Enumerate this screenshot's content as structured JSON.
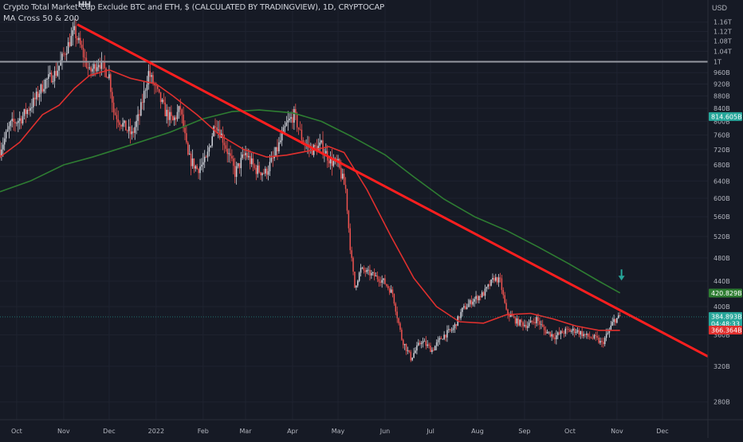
{
  "header": {
    "title": "Crypto Total Market Cap Exclude BTC and ETH, $ (CALCULATED BY TRADINGVIEW), 1D, CRYPTOCAP",
    "indicator": "MA Cross 50 & 200",
    "currency": "USD",
    "annotation": "HH"
  },
  "colors": {
    "background": "#161a25",
    "up_candle": "#d1d4dc",
    "down_candle": "#ef5350",
    "ma50": "#e0302e",
    "ma200": "#2e7d32",
    "trendline": "#ff1f1f",
    "resistance": "#9598a1",
    "arrow": "#26a69a"
  },
  "chart_data": {
    "type": "candlestick",
    "title": "Crypto Total Market Cap Exclude BTC and ETH, $ (CALCULATED BY TRADINGVIEW), 1D, CRYPTOCAP",
    "y_scale": "log",
    "ylim": [
      262,
      1260
    ],
    "xlim": [
      "2021-09-20",
      "2022-12-31"
    ],
    "y_ticks": [
      "1.16T",
      "1.12T",
      "1.08T",
      "1.04T",
      "1T",
      "960B",
      "920B",
      "880B",
      "840B",
      "800B",
      "760B",
      "720B",
      "680B",
      "640B",
      "600B",
      "560B",
      "520B",
      "480B",
      "440B",
      "400B",
      "360B",
      "320B",
      "280B"
    ],
    "x_ticks": [
      {
        "label": "Oct",
        "date": "2021-10-01"
      },
      {
        "label": "Nov",
        "date": "2021-11-01"
      },
      {
        "label": "Dec",
        "date": "2021-12-01"
      },
      {
        "label": "2022",
        "date": "2022-01-01"
      },
      {
        "label": "Feb",
        "date": "2022-02-01"
      },
      {
        "label": "Mar",
        "date": "2022-03-01"
      },
      {
        "label": "Apr",
        "date": "2022-04-01"
      },
      {
        "label": "May",
        "date": "2022-05-01"
      },
      {
        "label": "Jun",
        "date": "2022-06-01"
      },
      {
        "label": "Jul",
        "date": "2022-07-01"
      },
      {
        "label": "Aug",
        "date": "2022-08-01"
      },
      {
        "label": "Sep",
        "date": "2022-09-01"
      },
      {
        "label": "Oct",
        "date": "2022-10-01"
      },
      {
        "label": "Nov",
        "date": "2022-11-01"
      },
      {
        "label": "Dec",
        "date": "2022-12-01"
      }
    ],
    "price_path": [
      {
        "date": "2021-09-20",
        "value": 720
      },
      {
        "date": "2021-09-27",
        "value": 790
      },
      {
        "date": "2021-10-04",
        "value": 810
      },
      {
        "date": "2021-10-12",
        "value": 860
      },
      {
        "date": "2021-10-20",
        "value": 930
      },
      {
        "date": "2021-10-27",
        "value": 960
      },
      {
        "date": "2021-11-02",
        "value": 1040
      },
      {
        "date": "2021-11-08",
        "value": 1120
      },
      {
        "date": "2021-11-12",
        "value": 1060
      },
      {
        "date": "2021-11-18",
        "value": 960
      },
      {
        "date": "2021-11-24",
        "value": 1000
      },
      {
        "date": "2021-12-01",
        "value": 950
      },
      {
        "date": "2021-12-04",
        "value": 830
      },
      {
        "date": "2021-12-10",
        "value": 790
      },
      {
        "date": "2021-12-16",
        "value": 760
      },
      {
        "date": "2021-12-21",
        "value": 820
      },
      {
        "date": "2021-12-27",
        "value": 960
      },
      {
        "date": "2022-01-01",
        "value": 900
      },
      {
        "date": "2022-01-07",
        "value": 830
      },
      {
        "date": "2022-01-12",
        "value": 800
      },
      {
        "date": "2022-01-17",
        "value": 840
      },
      {
        "date": "2022-01-22",
        "value": 700
      },
      {
        "date": "2022-01-28",
        "value": 670
      },
      {
        "date": "2022-02-03",
        "value": 690
      },
      {
        "date": "2022-02-09",
        "value": 800
      },
      {
        "date": "2022-02-15",
        "value": 740
      },
      {
        "date": "2022-02-22",
        "value": 660
      },
      {
        "date": "2022-03-01",
        "value": 710
      },
      {
        "date": "2022-03-07",
        "value": 670
      },
      {
        "date": "2022-03-14",
        "value": 660
      },
      {
        "date": "2022-03-20",
        "value": 700
      },
      {
        "date": "2022-03-28",
        "value": 790
      },
      {
        "date": "2022-04-02",
        "value": 820
      },
      {
        "date": "2022-04-08",
        "value": 740
      },
      {
        "date": "2022-04-14",
        "value": 720
      },
      {
        "date": "2022-04-20",
        "value": 730
      },
      {
        "date": "2022-04-26",
        "value": 690
      },
      {
        "date": "2022-05-01",
        "value": 680
      },
      {
        "date": "2022-05-06",
        "value": 620
      },
      {
        "date": "2022-05-09",
        "value": 500
      },
      {
        "date": "2022-05-12",
        "value": 430
      },
      {
        "date": "2022-05-16",
        "value": 460
      },
      {
        "date": "2022-05-24",
        "value": 450
      },
      {
        "date": "2022-05-31",
        "value": 440
      },
      {
        "date": "2022-06-06",
        "value": 420
      },
      {
        "date": "2022-06-12",
        "value": 355
      },
      {
        "date": "2022-06-18",
        "value": 330
      },
      {
        "date": "2022-06-25",
        "value": 352
      },
      {
        "date": "2022-07-02",
        "value": 340
      },
      {
        "date": "2022-07-09",
        "value": 358
      },
      {
        "date": "2022-07-16",
        "value": 368
      },
      {
        "date": "2022-07-22",
        "value": 395
      },
      {
        "date": "2022-07-29",
        "value": 410
      },
      {
        "date": "2022-08-05",
        "value": 420
      },
      {
        "date": "2022-08-12",
        "value": 445
      },
      {
        "date": "2022-08-16",
        "value": 440
      },
      {
        "date": "2022-08-20",
        "value": 392
      },
      {
        "date": "2022-08-27",
        "value": 378
      },
      {
        "date": "2022-09-03",
        "value": 373
      },
      {
        "date": "2022-09-09",
        "value": 382
      },
      {
        "date": "2022-09-14",
        "value": 366
      },
      {
        "date": "2022-09-21",
        "value": 358
      },
      {
        "date": "2022-09-28",
        "value": 365
      },
      {
        "date": "2022-10-05",
        "value": 366
      },
      {
        "date": "2022-10-12",
        "value": 358
      },
      {
        "date": "2022-10-18",
        "value": 355
      },
      {
        "date": "2022-10-22",
        "value": 348
      },
      {
        "date": "2022-10-26",
        "value": 362
      },
      {
        "date": "2022-10-30",
        "value": 380
      },
      {
        "date": "2022-11-03",
        "value": 385
      }
    ],
    "ma50": [
      {
        "date": "2021-09-20",
        "value": 700
      },
      {
        "date": "2021-10-03",
        "value": 740
      },
      {
        "date": "2021-10-18",
        "value": 820
      },
      {
        "date": "2021-10-29",
        "value": 850
      },
      {
        "date": "2021-11-08",
        "value": 905
      },
      {
        "date": "2021-11-18",
        "value": 950
      },
      {
        "date": "2021-12-01",
        "value": 970
      },
      {
        "date": "2021-12-15",
        "value": 940
      },
      {
        "date": "2022-01-01",
        "value": 920
      },
      {
        "date": "2022-01-12",
        "value": 880
      },
      {
        "date": "2022-01-28",
        "value": 820
      },
      {
        "date": "2022-02-12",
        "value": 760
      },
      {
        "date": "2022-02-28",
        "value": 720
      },
      {
        "date": "2022-03-15",
        "value": 700
      },
      {
        "date": "2022-03-28",
        "value": 705
      },
      {
        "date": "2022-04-10",
        "value": 715
      },
      {
        "date": "2022-04-25",
        "value": 728
      },
      {
        "date": "2022-05-05",
        "value": 712
      },
      {
        "date": "2022-05-20",
        "value": 620
      },
      {
        "date": "2022-06-05",
        "value": 520
      },
      {
        "date": "2022-06-20",
        "value": 445
      },
      {
        "date": "2022-07-05",
        "value": 400
      },
      {
        "date": "2022-07-20",
        "value": 378
      },
      {
        "date": "2022-08-05",
        "value": 376
      },
      {
        "date": "2022-08-20",
        "value": 388
      },
      {
        "date": "2022-09-05",
        "value": 390
      },
      {
        "date": "2022-09-20",
        "value": 382
      },
      {
        "date": "2022-10-05",
        "value": 372
      },
      {
        "date": "2022-10-20",
        "value": 366
      },
      {
        "date": "2022-11-03",
        "value": 366
      }
    ],
    "ma200": [
      {
        "date": "2021-09-20",
        "value": 615
      },
      {
        "date": "2021-10-10",
        "value": 640
      },
      {
        "date": "2021-11-01",
        "value": 680
      },
      {
        "date": "2021-11-20",
        "value": 700
      },
      {
        "date": "2021-12-15",
        "value": 732
      },
      {
        "date": "2022-01-10",
        "value": 768
      },
      {
        "date": "2022-02-01",
        "value": 808
      },
      {
        "date": "2022-02-20",
        "value": 830
      },
      {
        "date": "2022-03-10",
        "value": 835
      },
      {
        "date": "2022-04-01",
        "value": 826
      },
      {
        "date": "2022-04-20",
        "value": 800
      },
      {
        "date": "2022-05-10",
        "value": 756
      },
      {
        "date": "2022-06-01",
        "value": 706
      },
      {
        "date": "2022-06-20",
        "value": 650
      },
      {
        "date": "2022-07-10",
        "value": 598
      },
      {
        "date": "2022-07-30",
        "value": 560
      },
      {
        "date": "2022-08-20",
        "value": 532
      },
      {
        "date": "2022-09-10",
        "value": 500
      },
      {
        "date": "2022-09-30",
        "value": 470
      },
      {
        "date": "2022-10-20",
        "value": 440
      },
      {
        "date": "2022-11-03",
        "value": 421
      }
    ],
    "trendline": {
      "start": {
        "date": "2021-11-10",
        "value": 1150
      },
      "end": {
        "date": "2022-12-31",
        "value": 332
      }
    },
    "resistance": {
      "value": 1000
    },
    "arrow": {
      "date": "2022-11-04",
      "value": 441
    },
    "tags": [
      {
        "label": "814.605B",
        "value": 814.6,
        "color": "#26a69a"
      },
      {
        "label": "420.829B",
        "value": 420.8,
        "color": "#2e7d32"
      },
      {
        "label": "384.893B",
        "sub": "04:48:33",
        "value": 384.9,
        "color": "#26a69a"
      },
      {
        "label": "366.364B",
        "value": 366.4,
        "color": "#e0302e"
      }
    ],
    "last_price": 384.893
  }
}
